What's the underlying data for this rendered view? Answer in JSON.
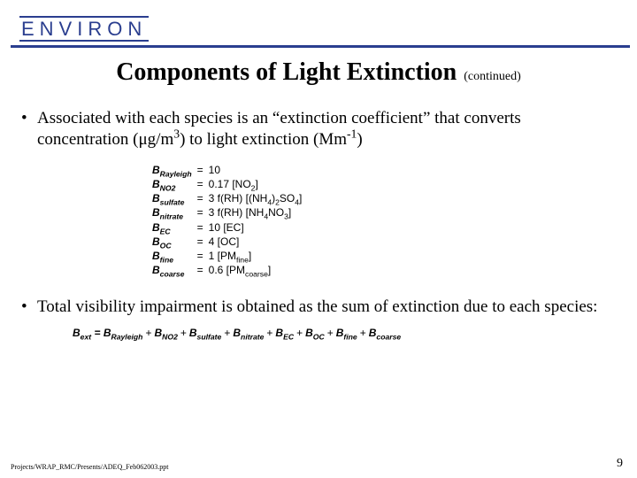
{
  "logo": {
    "text": "ENVIRON",
    "border_color": "#2a3e8f",
    "text_color": "#2a3e8f"
  },
  "rule_color": "#2a3e8f",
  "title": {
    "main": "Components of Light Extinction",
    "suffix": "(continued)"
  },
  "bullets": [
    "Associated with each species is an “extinction coefficient” that converts concentration (μg/m³) to light extinction (Mm⁻¹)",
    "Total visibility impairment is obtained as the sum of extinction due to each species:"
  ],
  "equations": [
    {
      "lhs": "B_Rayleigh",
      "rhs": "10"
    },
    {
      "lhs": "B_NO2",
      "rhs": "0.17 [NO₂]"
    },
    {
      "lhs": "B_sulfate",
      "rhs": "3 f(RH) [(NH₄)₂SO₄]"
    },
    {
      "lhs": "B_nitrate",
      "rhs": "3 f(RH) [NH₄NO₃]"
    },
    {
      "lhs": "B_EC",
      "rhs": "10 [EC]"
    },
    {
      "lhs": "B_OC",
      "rhs": "4 [OC]"
    },
    {
      "lhs": "B_fine",
      "rhs": "1 [PM_fine]"
    },
    {
      "lhs": "B_coarse",
      "rhs": "0.6 [PM_coarse]"
    }
  ],
  "sum_equation": {
    "lhs": "B_ext",
    "terms": [
      "B_Rayleigh",
      "B_NO2",
      "B_sulfate",
      "B_nitrate",
      "B_EC",
      "B_OC",
      "B_fine",
      "B_coarse"
    ]
  },
  "footer": {
    "path": "Projects/WRAP_RMC/Presents/ADEQ_Feb062003.ppt",
    "page": "9"
  },
  "styling": {
    "background": "#ffffff",
    "body_font": "Georgia/Times",
    "eq_font": "Arial",
    "title_fontsize_pt": 21,
    "bullet_fontsize_pt": 14,
    "eq_fontsize_pt": 9,
    "footer_path_fontsize_pt": 6,
    "footer_page_fontsize_pt": 11
  }
}
